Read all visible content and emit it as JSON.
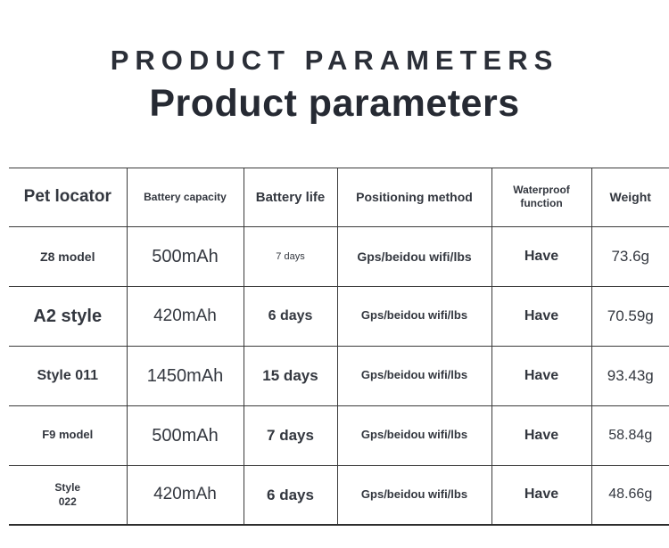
{
  "page": {
    "title_upper": "PRODUCT PARAMETERS",
    "title_main": "Product parameters"
  },
  "colors": {
    "text": "#2e323b",
    "border": "#3a3a3a",
    "background": "#ffffff"
  },
  "table": {
    "headers": [
      {
        "label": "Pet locator"
      },
      {
        "label": "Battery capacity"
      },
      {
        "label": "Battery life"
      },
      {
        "label": "Positioning method"
      },
      {
        "label": "Waterproof function"
      },
      {
        "label": "Weight"
      }
    ],
    "rows": [
      {
        "model": "Z8 model",
        "battery_capacity": "500mAh",
        "battery_life": "7 days",
        "positioning_method": "Gps/beidou wifi/lbs",
        "waterproof": "Have",
        "weight": "73.6g"
      },
      {
        "model": "A2 style",
        "battery_capacity": "420mAh",
        "battery_life": "6 days",
        "positioning_method": "Gps/beidou wifi/lbs",
        "waterproof": "Have",
        "weight": "70.59g"
      },
      {
        "model": "Style 011",
        "battery_capacity": "1450mAh",
        "battery_life": "15 days",
        "positioning_method": "Gps/beidou wifi/lbs",
        "waterproof": "Have",
        "weight": "93.43g"
      },
      {
        "model": "F9 model",
        "battery_capacity": "500mAh",
        "battery_life": "7 days",
        "positioning_method": "Gps/beidou wifi/lbs",
        "waterproof": "Have",
        "weight": "58.84g"
      },
      {
        "model": "Style\n022",
        "battery_capacity": "420mAh",
        "battery_life": "6 days",
        "positioning_method": "Gps/beidou wifi/lbs",
        "waterproof": "Have",
        "weight": "48.66g"
      }
    ]
  }
}
